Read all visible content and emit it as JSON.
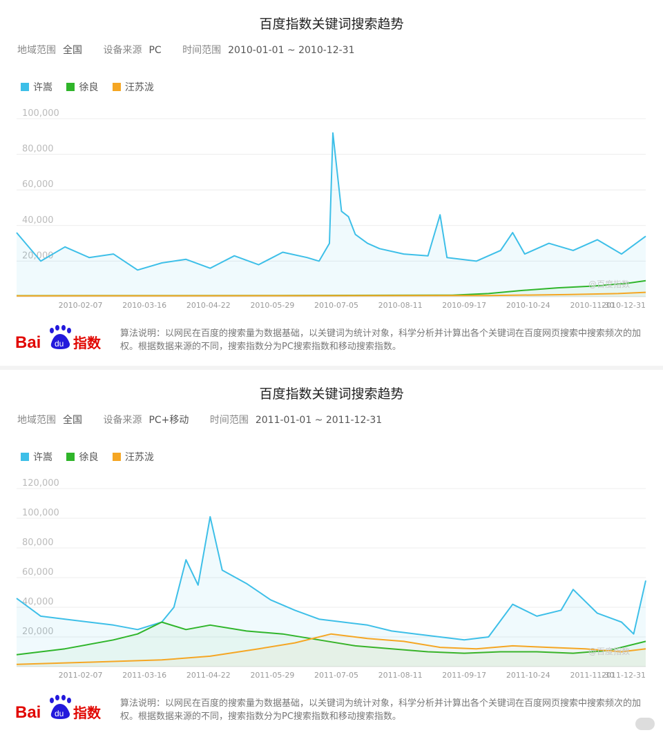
{
  "panels": [
    {
      "title": "百度指数关键词搜索趋势",
      "region_label": "地域范围",
      "region": "全国",
      "device_label": "设备来源",
      "device": "PC",
      "time_label": "时间范围",
      "time": "2010-01-01 ~ 2010-12-31",
      "watermark": "@百度指数",
      "note": "算法说明：以网民在百度的搜索量为数据基础，以关键词为统计对象，科学分析并计算出各个关键词在百度网页搜索中搜索频次的加权。根据数据来源的不同，搜索指数分为PC搜索指数和移动搜索指数。"
    },
    {
      "title": "百度指数关键词搜索趋势",
      "region_label": "地域范围",
      "region": "全国",
      "device_label": "设备来源",
      "device": "PC+移动",
      "time_label": "时间范围",
      "time": "2011-01-01 ~ 2011-12-31",
      "watermark": "@百度指数",
      "note": "算法说明：以网民在百度的搜索量为数据基础，以关键词为统计对象，科学分析并计算出各个关键词在百度网页搜索中搜索频次的加权。根据数据来源的不同，搜索指数分为PC搜索指数和移动搜索指数。"
    }
  ],
  "logo": {
    "bai": "Bai",
    "du": "du",
    "zhishu": "指数"
  },
  "colors": {
    "xu_song": "#3dbfe8",
    "xu_liang": "#2fb52a",
    "wang_sulong": "#f5a623"
  },
  "chart_data": [
    {
      "type": "line",
      "ylim": [
        0,
        100000
      ],
      "yticks": [
        "20,000",
        "40,000",
        "60,000",
        "80,000",
        "100,000"
      ],
      "tick_labels": [
        "2010-02-07",
        "2010-03-16",
        "2010-04-22",
        "2010-05-29",
        "2010-07-05",
        "2010-08-11",
        "2010-09-17",
        "2010-10-24",
        "2010-11-30",
        "2010-12-31"
      ],
      "grid": true,
      "legend": "top-left",
      "series": [
        {
          "name": "许嵩",
          "color": "#3dbfe8",
          "x": [
            "2010-01-01",
            "2010-01-15",
            "2010-01-29",
            "2010-02-12",
            "2010-02-26",
            "2010-03-12",
            "2010-03-26",
            "2010-04-09",
            "2010-04-23",
            "2010-05-07",
            "2010-05-21",
            "2010-06-04",
            "2010-06-18",
            "2010-06-25",
            "2010-07-01",
            "2010-07-03",
            "2010-07-08",
            "2010-07-12",
            "2010-07-16",
            "2010-07-23",
            "2010-07-30",
            "2010-08-13",
            "2010-08-27",
            "2010-09-03",
            "2010-09-07",
            "2010-09-24",
            "2010-10-08",
            "2010-10-15",
            "2010-10-22",
            "2010-11-05",
            "2010-11-19",
            "2010-12-03",
            "2010-12-17",
            "2010-12-31"
          ],
          "values": [
            36000,
            20000,
            28000,
            22000,
            24000,
            15000,
            19000,
            21000,
            16000,
            23000,
            18000,
            25000,
            22000,
            20000,
            30000,
            92000,
            48000,
            45000,
            35000,
            30000,
            27000,
            24000,
            23000,
            46000,
            22000,
            20000,
            26000,
            36000,
            24000,
            30000,
            26000,
            32000,
            24000,
            34000
          ]
        },
        {
          "name": "徐良",
          "color": "#2fb52a",
          "x": [
            "2010-01-01",
            "2010-06-01",
            "2010-09-10",
            "2010-10-01",
            "2010-10-20",
            "2010-11-10",
            "2010-12-01",
            "2010-12-20",
            "2010-12-31"
          ],
          "values": [
            600,
            700,
            900,
            1800,
            3500,
            5000,
            6000,
            7500,
            9000
          ]
        },
        {
          "name": "汪苏泷",
          "color": "#f5a623",
          "x": [
            "2010-01-01",
            "2010-06-01",
            "2010-10-01",
            "2010-11-15",
            "2010-12-15",
            "2010-12-31"
          ],
          "values": [
            500,
            600,
            700,
            1200,
            1800,
            2500
          ]
        }
      ]
    },
    {
      "type": "line",
      "ylim": [
        0,
        120000
      ],
      "yticks": [
        "20,000",
        "40,000",
        "60,000",
        "80,000",
        "100,000",
        "120,000"
      ],
      "tick_labels": [
        "2011-02-07",
        "2011-03-16",
        "2011-04-22",
        "2011-05-29",
        "2011-07-05",
        "2011-08-11",
        "2011-09-17",
        "2011-10-24",
        "2011-11-30",
        "2011-12-31"
      ],
      "grid": true,
      "legend": "top-left",
      "series": [
        {
          "name": "许嵩",
          "color": "#3dbfe8",
          "x": [
            "2011-01-01",
            "2011-01-15",
            "2011-01-29",
            "2011-02-12",
            "2011-02-26",
            "2011-03-12",
            "2011-03-26",
            "2011-04-02",
            "2011-04-09",
            "2011-04-16",
            "2011-04-23",
            "2011-04-30",
            "2011-05-14",
            "2011-05-28",
            "2011-06-11",
            "2011-06-25",
            "2011-07-09",
            "2011-07-23",
            "2011-08-06",
            "2011-08-20",
            "2011-09-03",
            "2011-09-17",
            "2011-10-01",
            "2011-10-15",
            "2011-10-29",
            "2011-11-12",
            "2011-11-19",
            "2011-12-03",
            "2011-12-17",
            "2011-12-24",
            "2011-12-31"
          ],
          "values": [
            46000,
            34000,
            32000,
            30000,
            28000,
            25000,
            30000,
            40000,
            72000,
            55000,
            101000,
            65000,
            56000,
            45000,
            38000,
            32000,
            30000,
            28000,
            24000,
            22000,
            20000,
            18000,
            20000,
            42000,
            34000,
            38000,
            52000,
            36000,
            30000,
            22000,
            58000
          ]
        },
        {
          "name": "徐良",
          "color": "#2fb52a",
          "x": [
            "2011-01-01",
            "2011-01-29",
            "2011-02-26",
            "2011-03-12",
            "2011-03-26",
            "2011-04-09",
            "2011-04-23",
            "2011-05-14",
            "2011-06-04",
            "2011-06-25",
            "2011-07-16",
            "2011-08-06",
            "2011-08-27",
            "2011-09-17",
            "2011-10-08",
            "2011-10-29",
            "2011-11-19",
            "2011-12-10",
            "2011-12-31"
          ],
          "values": [
            8000,
            12000,
            18000,
            22000,
            30000,
            25000,
            28000,
            24000,
            22000,
            18000,
            14000,
            12000,
            10000,
            9000,
            10000,
            10000,
            9000,
            11000,
            17000
          ]
        },
        {
          "name": "汪苏泷",
          "color": "#f5a623",
          "x": [
            "2011-01-01",
            "2011-02-12",
            "2011-03-26",
            "2011-04-23",
            "2011-05-21",
            "2011-06-11",
            "2011-07-02",
            "2011-07-23",
            "2011-08-13",
            "2011-09-03",
            "2011-09-24",
            "2011-10-15",
            "2011-11-05",
            "2011-11-26",
            "2011-12-17",
            "2011-12-31"
          ],
          "values": [
            1500,
            3000,
            4500,
            7000,
            12000,
            16000,
            22000,
            19000,
            17000,
            13000,
            12000,
            14000,
            13000,
            12000,
            10000,
            12000
          ]
        }
      ]
    }
  ]
}
